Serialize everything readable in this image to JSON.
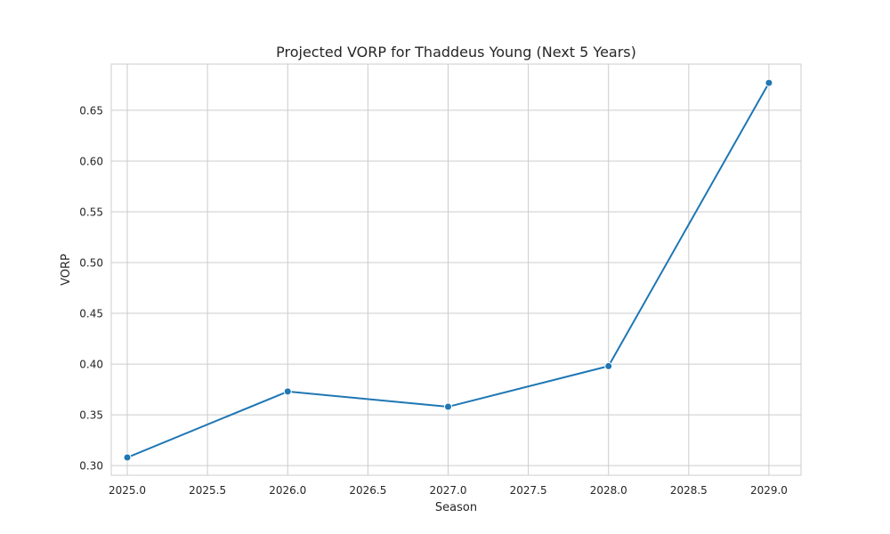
{
  "chart_data": {
    "type": "line",
    "title": "Projected VORP for Thaddeus Young (Next 5 Years)",
    "xlabel": "Season",
    "ylabel": "VORP",
    "xlim": [
      2024.9,
      2029.2
    ],
    "ylim": [
      0.2905,
      0.6955
    ],
    "x_ticks": [
      2025.0,
      2025.5,
      2026.0,
      2026.5,
      2027.0,
      2027.5,
      2028.0,
      2028.5,
      2029.0
    ],
    "x_tick_labels": [
      "2025.0",
      "2025.5",
      "2026.0",
      "2026.5",
      "2027.0",
      "2027.5",
      "2028.0",
      "2028.5",
      "2029.0"
    ],
    "y_ticks": [
      0.3,
      0.35,
      0.4,
      0.45,
      0.5,
      0.55,
      0.6,
      0.65
    ],
    "y_tick_labels": [
      "0.30",
      "0.35",
      "0.40",
      "0.45",
      "0.50",
      "0.55",
      "0.60",
      "0.65"
    ],
    "grid": true,
    "series": [
      {
        "color": "#1f77b4",
        "marker": "circle",
        "x": [
          2025,
          2026,
          2027,
          2028,
          2029
        ],
        "y": [
          0.308,
          0.373,
          0.358,
          0.398,
          0.677
        ]
      }
    ]
  }
}
